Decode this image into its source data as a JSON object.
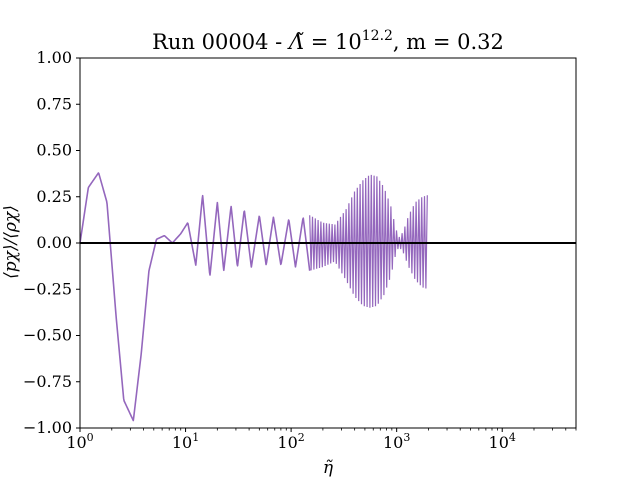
{
  "chart_data": {
    "type": "line",
    "title": "Run 00004 - Λ̃ = 10^12.2, m = 0.32",
    "title_parts": {
      "prefix": "Run 00004 - ",
      "lambda_symbol": "Λ̃",
      "equals": " = 10",
      "exponent": "12.2",
      "m_part": ", m = 0.32"
    },
    "xlabel": "η̃",
    "ylabel": "⟨pχ⟩/⟨ρχ⟩",
    "x_scale": "log",
    "xlim": [
      1,
      50000
    ],
    "ylim": [
      -1.0,
      1.0
    ],
    "x_ticks": [
      {
        "value": 1,
        "base": "10",
        "exp": "0"
      },
      {
        "value": 10,
        "base": "10",
        "exp": "1"
      },
      {
        "value": 100,
        "base": "10",
        "exp": "2"
      },
      {
        "value": 1000,
        "base": "10",
        "exp": "3"
      },
      {
        "value": 10000,
        "base": "10",
        "exp": "4"
      }
    ],
    "y_ticks": [
      {
        "value": 1.0,
        "label": "1.00"
      },
      {
        "value": 0.75,
        "label": "0.75"
      },
      {
        "value": 0.5,
        "label": "0.50"
      },
      {
        "value": 0.25,
        "label": "0.25"
      },
      {
        "value": 0.0,
        "label": "0.00"
      },
      {
        "value": -0.25,
        "label": "−0.25"
      },
      {
        "value": -0.5,
        "label": "−0.50"
      },
      {
        "value": -0.75,
        "label": "−0.75"
      },
      {
        "value": -1.0,
        "label": "−1.00"
      }
    ],
    "grid": false,
    "reference_line": {
      "y": 0,
      "color": "#000000"
    },
    "series": [
      {
        "color": "#9467bd",
        "x": [
          1,
          1.2,
          1.5,
          1.8,
          2.2,
          2.6,
          3.2,
          3.8,
          4.5,
          5.3,
          6.3,
          7.5,
          9.0,
          10.5,
          12.5,
          14.5,
          17,
          20,
          23,
          27,
          31,
          36,
          42,
          50,
          58,
          68,
          80,
          95,
          110,
          130,
          150
        ],
        "y": [
          0.0,
          0.3,
          0.38,
          0.22,
          -0.4,
          -0.85,
          -0.96,
          -0.6,
          -0.15,
          0.02,
          0.04,
          0.0,
          0.05,
          0.11,
          -0.12,
          0.26,
          -0.18,
          0.22,
          -0.15,
          0.2,
          -0.13,
          0.18,
          -0.13,
          0.15,
          -0.12,
          0.14,
          -0.12,
          0.13,
          -0.13,
          0.14,
          -0.15
        ],
        "envelope": {
          "x": [
            150,
            200,
            260,
            330,
            400,
            480,
            560,
            650,
            760,
            880,
            980,
            1050,
            1150,
            1300,
            1500,
            1750,
            2000
          ],
          "upper": [
            0.15,
            0.11,
            0.1,
            0.18,
            0.28,
            0.34,
            0.37,
            0.36,
            0.3,
            0.2,
            0.08,
            0.03,
            0.06,
            0.15,
            0.22,
            0.25,
            0.26
          ],
          "lower": [
            -0.15,
            -0.13,
            -0.1,
            -0.2,
            -0.29,
            -0.34,
            -0.35,
            -0.34,
            -0.28,
            -0.18,
            -0.06,
            -0.02,
            -0.05,
            -0.13,
            -0.2,
            -0.24,
            -0.25
          ]
        }
      }
    ]
  }
}
